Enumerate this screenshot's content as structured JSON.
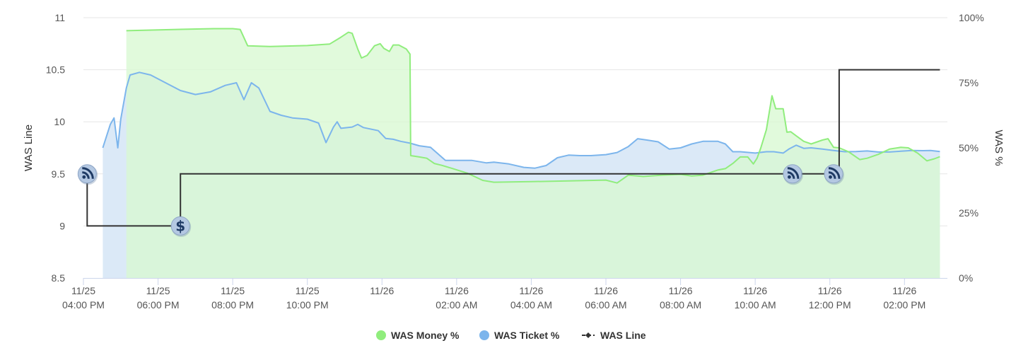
{
  "chart_data": {
    "type": "line",
    "title": "",
    "y_left": {
      "label": "WAS Line",
      "min": 8.5,
      "max": 11,
      "ticks": [
        "8.5",
        "9",
        "9.5",
        "10",
        "10.5",
        "11"
      ]
    },
    "y_right": {
      "label": "WAS %",
      "min": 0,
      "max": 100,
      "ticks": [
        "0%",
        "25%",
        "50%",
        "75%",
        "100%"
      ]
    },
    "x_axis": {
      "ticks": [
        {
          "t": 0,
          "date": "11/25",
          "time": "04:00 PM"
        },
        {
          "t": 2,
          "date": "11/25",
          "time": "06:00 PM"
        },
        {
          "t": 4,
          "date": "11/25",
          "time": "08:00 PM"
        },
        {
          "t": 6,
          "date": "11/25",
          "time": "10:00 PM"
        },
        {
          "t": 8,
          "date": "11/26",
          "time": ""
        },
        {
          "t": 10,
          "date": "11/26",
          "time": "02:00 AM"
        },
        {
          "t": 12,
          "date": "11/26",
          "time": "04:00 AM"
        },
        {
          "t": 14,
          "date": "11/26",
          "time": "06:00 AM"
        },
        {
          "t": 16,
          "date": "11/26",
          "time": "08:00 AM"
        },
        {
          "t": 18,
          "date": "11/26",
          "time": "10:00 AM"
        },
        {
          "t": 20,
          "date": "11/26",
          "time": "12:00 PM"
        },
        {
          "t": 22,
          "date": "11/26",
          "time": "02:00 PM"
        }
      ]
    },
    "grid": true,
    "legend_position": "bottom-center",
    "series": [
      {
        "name": "WAS Money %",
        "axis": "right",
        "type": "area",
        "color": "#90ed7d",
        "fill": "#d9f8d2",
        "points": [
          [
            1.15,
            95
          ],
          [
            2.5,
            95.5
          ],
          [
            3.5,
            95.8
          ],
          [
            4.0,
            95.8
          ],
          [
            4.2,
            95.5
          ],
          [
            4.4,
            89.2
          ],
          [
            5.0,
            88.9
          ],
          [
            6.0,
            89.3
          ],
          [
            6.6,
            89.9
          ],
          [
            6.9,
            92.5
          ],
          [
            7.1,
            94.4
          ],
          [
            7.2,
            94
          ],
          [
            7.35,
            88
          ],
          [
            7.45,
            84.5
          ],
          [
            7.6,
            85.5
          ],
          [
            7.8,
            89.2
          ],
          [
            7.95,
            90
          ],
          [
            8.05,
            88.2
          ],
          [
            8.2,
            87
          ],
          [
            8.3,
            89.5
          ],
          [
            8.45,
            89.5
          ],
          [
            8.65,
            88
          ],
          [
            8.75,
            86
          ],
          [
            8.77,
            47
          ],
          [
            9.0,
            46.5
          ],
          [
            9.2,
            46
          ],
          [
            9.4,
            44
          ],
          [
            9.6,
            43.3
          ],
          [
            9.9,
            42
          ],
          [
            10.3,
            40.2
          ],
          [
            10.7,
            37.5
          ],
          [
            11.0,
            36.8
          ],
          [
            12.0,
            37
          ],
          [
            13.0,
            37.3
          ],
          [
            14.0,
            37.6
          ],
          [
            14.3,
            36.5
          ],
          [
            14.6,
            39.5
          ],
          [
            15.0,
            39
          ],
          [
            15.5,
            39.5
          ],
          [
            16.0,
            39.8
          ],
          [
            16.3,
            39.2
          ],
          [
            16.6,
            39.5
          ],
          [
            17.0,
            41.5
          ],
          [
            17.2,
            42
          ],
          [
            17.4,
            44
          ],
          [
            17.6,
            46.5
          ],
          [
            17.8,
            46.5
          ],
          [
            17.95,
            43.8
          ],
          [
            18.05,
            46
          ],
          [
            18.15,
            50
          ],
          [
            18.3,
            57
          ],
          [
            18.45,
            70
          ],
          [
            18.55,
            65
          ],
          [
            18.75,
            65
          ],
          [
            18.85,
            56
          ],
          [
            18.95,
            56.2
          ],
          [
            19.1,
            54.6
          ],
          [
            19.3,
            52.5
          ],
          [
            19.5,
            51.5
          ],
          [
            19.8,
            53
          ],
          [
            19.95,
            53.5
          ],
          [
            20.1,
            50.2
          ],
          [
            20.25,
            50
          ],
          [
            20.5,
            48.5
          ],
          [
            20.8,
            45.5
          ],
          [
            21.0,
            46
          ],
          [
            21.3,
            47.5
          ],
          [
            21.6,
            49.5
          ],
          [
            21.9,
            50.2
          ],
          [
            22.1,
            50
          ],
          [
            22.35,
            48
          ],
          [
            22.6,
            45
          ],
          [
            22.8,
            45.8
          ],
          [
            22.95,
            46.6
          ]
        ]
      },
      {
        "name": "WAS Ticket %",
        "axis": "right",
        "type": "area",
        "color": "#7cb5ec",
        "fill": "#dbe9f7",
        "points": [
          [
            0.52,
            50
          ],
          [
            0.72,
            59
          ],
          [
            0.82,
            61.5
          ],
          [
            0.92,
            50
          ],
          [
            1.0,
            61
          ],
          [
            1.15,
            73
          ],
          [
            1.25,
            78
          ],
          [
            1.5,
            79
          ],
          [
            1.8,
            78
          ],
          [
            2.2,
            75
          ],
          [
            2.6,
            72
          ],
          [
            3.0,
            70.5
          ],
          [
            3.4,
            71.5
          ],
          [
            3.8,
            74
          ],
          [
            4.1,
            75
          ],
          [
            4.3,
            68.5
          ],
          [
            4.5,
            75
          ],
          [
            4.7,
            73
          ],
          [
            5.0,
            64
          ],
          [
            5.3,
            62.5
          ],
          [
            5.6,
            61.5
          ],
          [
            6.0,
            61
          ],
          [
            6.3,
            59.5
          ],
          [
            6.5,
            52
          ],
          [
            6.7,
            58
          ],
          [
            6.8,
            60
          ],
          [
            6.9,
            57.5
          ],
          [
            7.2,
            58
          ],
          [
            7.35,
            59
          ],
          [
            7.5,
            57.8
          ],
          [
            7.9,
            56.6
          ],
          [
            8.1,
            53.6
          ],
          [
            8.3,
            53.3
          ],
          [
            8.5,
            52.5
          ],
          [
            8.75,
            51.8
          ],
          [
            9.0,
            50.8
          ],
          [
            9.3,
            50.2
          ],
          [
            9.5,
            47.7
          ],
          [
            9.7,
            45.2
          ],
          [
            10.0,
            45.2
          ],
          [
            10.4,
            45.2
          ],
          [
            10.8,
            44.2
          ],
          [
            11.0,
            44.5
          ],
          [
            11.4,
            43.8
          ],
          [
            11.8,
            42.5
          ],
          [
            12.1,
            42.2
          ],
          [
            12.4,
            43.2
          ],
          [
            12.7,
            46.2
          ],
          [
            13.0,
            47.2
          ],
          [
            13.3,
            47
          ],
          [
            13.6,
            47
          ],
          [
            14.0,
            47.4
          ],
          [
            14.3,
            48.2
          ],
          [
            14.6,
            50.5
          ],
          [
            14.85,
            53.5
          ],
          [
            15.1,
            53
          ],
          [
            15.4,
            52.3
          ],
          [
            15.7,
            49.5
          ],
          [
            16.0,
            50
          ],
          [
            16.3,
            51.5
          ],
          [
            16.6,
            52.5
          ],
          [
            17.0,
            52.5
          ],
          [
            17.2,
            51.5
          ],
          [
            17.4,
            48.5
          ],
          [
            17.6,
            48.5
          ],
          [
            18.0,
            48
          ],
          [
            18.3,
            48.5
          ],
          [
            18.5,
            48.5
          ],
          [
            18.75,
            48
          ],
          [
            18.9,
            49.5
          ],
          [
            19.1,
            51
          ],
          [
            19.3,
            49.8
          ],
          [
            19.5,
            50
          ],
          [
            19.8,
            49.5
          ],
          [
            20.1,
            49
          ],
          [
            20.4,
            48.5
          ],
          [
            20.7,
            48.6
          ],
          [
            21.0,
            48.8
          ],
          [
            21.3,
            48.4
          ],
          [
            21.6,
            48.4
          ],
          [
            21.9,
            48.7
          ],
          [
            22.2,
            49
          ],
          [
            22.5,
            48.9
          ],
          [
            22.7,
            49
          ],
          [
            22.95,
            48.6
          ]
        ]
      },
      {
        "name": "WAS Line",
        "axis": "left",
        "type": "step",
        "color": "#333333",
        "points": [
          [
            0.1,
            9.5
          ],
          [
            0.1,
            9.0
          ],
          [
            2.6,
            9.0
          ],
          [
            2.6,
            9.5
          ],
          [
            18.5,
            9.5
          ],
          [
            20.0,
            9.5
          ],
          [
            20.25,
            9.5
          ],
          [
            20.25,
            10.5
          ],
          [
            22.95,
            10.5
          ]
        ]
      }
    ],
    "markers": [
      {
        "t": 0.1,
        "value": 9.5,
        "icon": "rss-icon"
      },
      {
        "t": 2.6,
        "value": 9.0,
        "icon": "dollar-icon"
      },
      {
        "t": 19.0,
        "value": 9.5,
        "icon": "rss-icon"
      },
      {
        "t": 20.1,
        "value": 9.5,
        "icon": "rss-icon"
      }
    ]
  }
}
